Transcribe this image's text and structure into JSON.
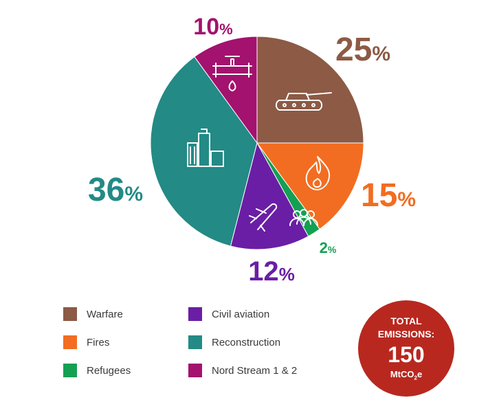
{
  "chart_data": {
    "type": "pie",
    "categories": [
      "Warfare",
      "Fires",
      "Refugees",
      "Civil aviation",
      "Reconstruction",
      "Nord Stream 1 & 2"
    ],
    "values": [
      25,
      15,
      2,
      12,
      36,
      10
    ],
    "labels": [
      "25",
      "15",
      "2",
      "12",
      "36",
      "10"
    ],
    "unit": "%",
    "colors": [
      "#8c5a45",
      "#f26d21",
      "#14a052",
      "#6a1ea5",
      "#238a85",
      "#a3126e"
    ],
    "icons": [
      "tank-icon",
      "fire-icon",
      "people-icon",
      "airplane-icon",
      "buildings-icon",
      "pipeline-icon"
    ]
  },
  "legend": {
    "items": [
      {
        "label": "Warfare",
        "color": "#8c5a45"
      },
      {
        "label": "Civil aviation",
        "color": "#6a1ea5"
      },
      {
        "label": "Fires",
        "color": "#f26d21"
      },
      {
        "label": "Reconstruction",
        "color": "#238a85"
      },
      {
        "label": "Refugees",
        "color": "#14a052"
      },
      {
        "label": "Nord Stream 1 & 2",
        "color": "#a3126e"
      }
    ]
  },
  "total": {
    "line1": "TOTAL",
    "line2": "EMISSIONS:",
    "value": "150",
    "unit_main": "MtCO",
    "unit_sub": "2",
    "unit_end": "e",
    "color": "#b8281f"
  }
}
